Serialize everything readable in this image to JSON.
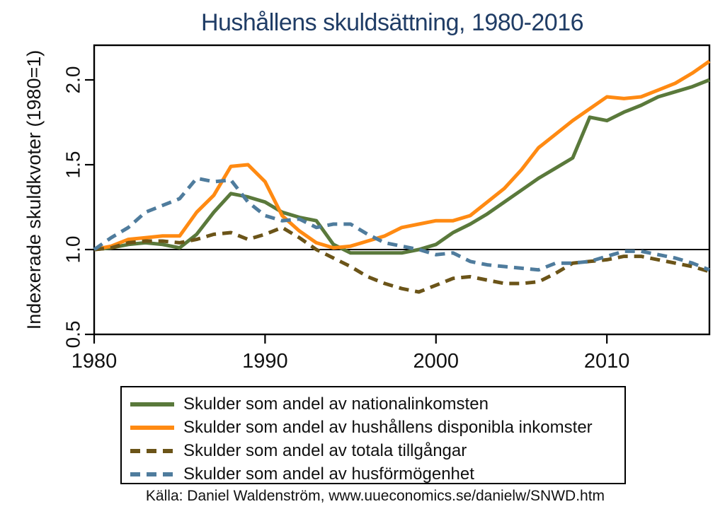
{
  "title": "Hushållens skuldsättning, 1980-2016",
  "source": "Källa: Daniel Waldenström, www.uueconomics.se/danielw/SNWD.htm",
  "colors": {
    "title_text": "#203d66",
    "axis": "#000000",
    "background": "#ffffff",
    "green_series": "#5a793b",
    "orange_series": "#ff8a12",
    "brown_series": "#6b5418",
    "blue_series": "#4f7c9d"
  },
  "chart_data": {
    "type": "line",
    "title": "Hushållens skuldsättning, 1980-2016",
    "xlabel": "",
    "ylabel": "Indexerade skuldkvoter (1980=1)",
    "xlim": [
      1980,
      2016
    ],
    "ylim": [
      0.5,
      2.2
    ],
    "x_ticks": [
      1980,
      1990,
      2000,
      2010
    ],
    "y_ticks": [
      0.5,
      1.0,
      1.5,
      2.0
    ],
    "y_tick_labels": [
      "0.5",
      "1.0",
      "1.5",
      "2.0"
    ],
    "x_tick_labels": [
      "1980",
      "1990",
      "2000",
      "2010"
    ],
    "reference_line_y": 1.0,
    "grid": false,
    "legend_position": "bottom",
    "years": [
      1980,
      1981,
      1982,
      1983,
      1984,
      1985,
      1986,
      1987,
      1988,
      1989,
      1990,
      1991,
      1992,
      1993,
      1994,
      1995,
      1996,
      1997,
      1998,
      1999,
      2000,
      2001,
      2002,
      2003,
      2004,
      2005,
      2006,
      2007,
      2008,
      2009,
      2010,
      2011,
      2012,
      2013,
      2014,
      2015,
      2016
    ],
    "series": [
      {
        "name": "Skulder som andel av nationalinkomsten",
        "color": "#5a793b",
        "style": "solid",
        "values": [
          1.0,
          1.01,
          1.03,
          1.04,
          1.03,
          1.01,
          1.09,
          1.22,
          1.33,
          1.31,
          1.28,
          1.22,
          1.19,
          1.17,
          1.03,
          0.98,
          0.98,
          0.98,
          0.98,
          1.0,
          1.03,
          1.1,
          1.15,
          1.21,
          1.28,
          1.35,
          1.42,
          1.48,
          1.54,
          1.78,
          1.76,
          1.81,
          1.85,
          1.9,
          1.93,
          1.96,
          2.0
        ]
      },
      {
        "name": "Skulder som andel av hushållens disponibla inkomster",
        "color": "#ff8a12",
        "style": "solid",
        "values": [
          1.0,
          1.02,
          1.06,
          1.07,
          1.08,
          1.08,
          1.22,
          1.32,
          1.49,
          1.5,
          1.4,
          1.2,
          1.11,
          1.04,
          1.01,
          1.02,
          1.05,
          1.08,
          1.13,
          1.15,
          1.17,
          1.17,
          1.2,
          1.28,
          1.36,
          1.47,
          1.6,
          1.68,
          1.76,
          1.83,
          1.9,
          1.89,
          1.9,
          1.94,
          1.98,
          2.04,
          2.11
        ]
      },
      {
        "name": "Skulder som andel av totala tillgångar",
        "color": "#6b5418",
        "style": "dashed",
        "values": [
          1.0,
          1.01,
          1.04,
          1.05,
          1.05,
          1.04,
          1.06,
          1.09,
          1.1,
          1.06,
          1.09,
          1.13,
          1.07,
          1.0,
          0.95,
          0.9,
          0.84,
          0.8,
          0.77,
          0.75,
          0.79,
          0.83,
          0.84,
          0.82,
          0.8,
          0.8,
          0.81,
          0.86,
          0.92,
          0.93,
          0.94,
          0.96,
          0.96,
          0.94,
          0.92,
          0.9,
          0.87
        ]
      },
      {
        "name": "Skulder som andel av husförmögenhet",
        "color": "#4f7c9d",
        "style": "dashed",
        "values": [
          1.0,
          1.07,
          1.13,
          1.22,
          1.26,
          1.3,
          1.42,
          1.4,
          1.41,
          1.28,
          1.2,
          1.17,
          1.18,
          1.13,
          1.15,
          1.15,
          1.09,
          1.04,
          1.02,
          1.0,
          0.97,
          0.98,
          0.93,
          0.91,
          0.9,
          0.89,
          0.88,
          0.92,
          0.92,
          0.93,
          0.96,
          0.99,
          0.99,
          0.97,
          0.95,
          0.92,
          0.88
        ]
      }
    ]
  }
}
